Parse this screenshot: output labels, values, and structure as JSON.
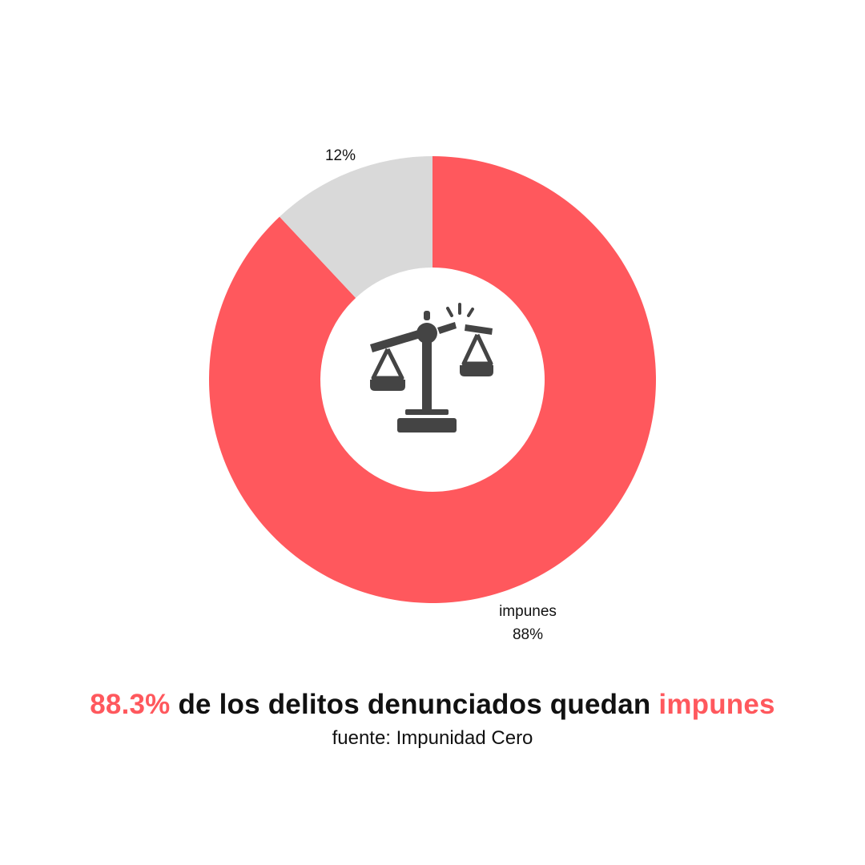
{
  "chart_data": {
    "type": "pie",
    "variant": "donut",
    "categories": [
      "impunes",
      ""
    ],
    "values": [
      88,
      12
    ],
    "labels": [
      "impunes\n88%",
      "12%"
    ],
    "colors": [
      "#ff585d",
      "#d9d9d9"
    ],
    "center_icon": "broken-scales-of-justice-icon"
  },
  "headline": {
    "highlight_value": "88.3%",
    "middle_text": " de los delitos denunciados quedan ",
    "highlight_word": "impunes"
  },
  "source": "fuente: Impunidad Cero",
  "colors": {
    "accent": "#ff585d",
    "secondary": "#d9d9d9",
    "icon": "#444444",
    "text": "#111111"
  }
}
